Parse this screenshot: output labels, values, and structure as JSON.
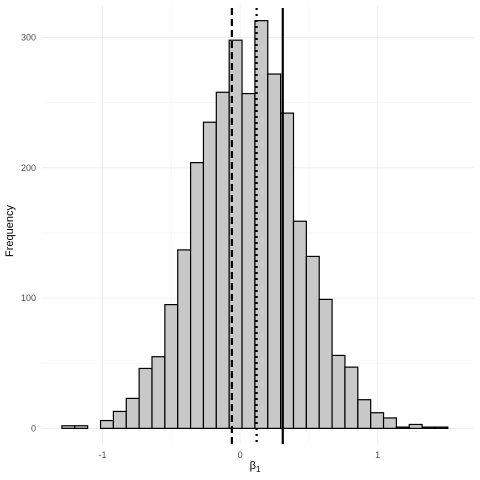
{
  "chart_data": {
    "type": "bar",
    "title": "",
    "xlabel": "β",
    "xlabel_sub": "1",
    "ylabel": "Frequency",
    "xlim": [
      -1.44,
      1.7
    ],
    "ylim": [
      -12,
      325
    ],
    "x_ticks": [
      -1,
      0,
      1
    ],
    "y_ticks": [
      0,
      100,
      200,
      300
    ],
    "grid": true,
    "bin_width": 0.0935,
    "bin_start": -1.295,
    "counts": [
      2,
      2,
      0,
      6,
      13,
      23,
      46,
      55,
      95,
      137,
      204,
      235,
      258,
      298,
      257,
      313,
      272,
      242,
      159,
      132,
      99,
      56,
      47,
      22,
      12,
      8,
      1,
      3,
      1,
      1
    ],
    "vlines": [
      {
        "x": -0.06,
        "style": "dashed"
      },
      {
        "x": 0.12,
        "style": "dotted"
      },
      {
        "x": 0.31,
        "style": "solid"
      }
    ],
    "colors": {
      "bar_fill": "#c8c8c8",
      "bar_stroke": "#000000",
      "line": "#000000"
    }
  }
}
